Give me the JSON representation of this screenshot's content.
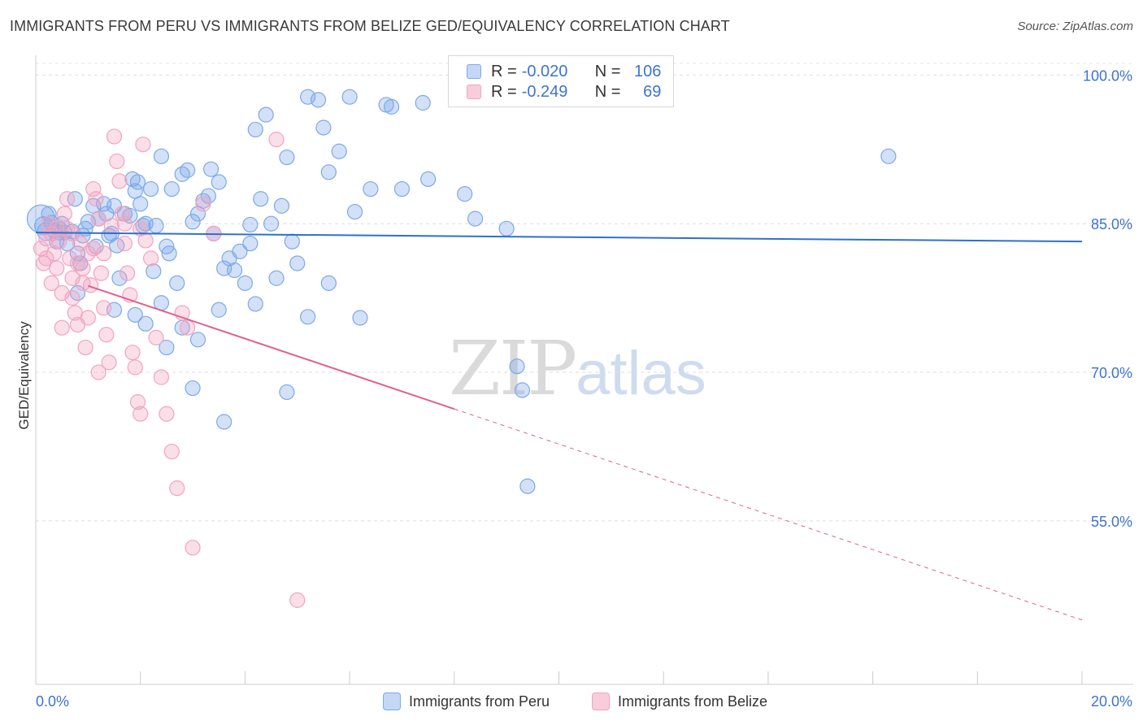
{
  "title": "IMMIGRANTS FROM PERU VS IMMIGRANTS FROM BELIZE GED/EQUIVALENCY CORRELATION CHART",
  "source": "Source: ZipAtlas.com",
  "watermark": {
    "zip": "ZIP",
    "atlas": "atlas"
  },
  "legend_top": {
    "rows": [
      {
        "r_label": "R =",
        "r_value": "-0.020",
        "n_label": "N =",
        "n_value": "106"
      },
      {
        "r_label": "R =",
        "r_value": "-0.249",
        "n_label": "N =",
        "n_value": "69"
      }
    ]
  },
  "chart_data": {
    "type": "scatter",
    "title": "IMMIGRANTS FROM PERU VS IMMIGRANTS FROM BELIZE GED/EQUIVALENCY CORRELATION CHART",
    "xlabel": "",
    "ylabel": "GED/Equivalency",
    "xlim": [
      0,
      20
    ],
    "ylim": [
      38.5,
      102
    ],
    "x_tick_labels": [
      "0.0%",
      "20.0%"
    ],
    "y_ticks": [
      55,
      70,
      85,
      100
    ],
    "y_tick_labels": [
      "55.0%",
      "70.0%",
      "85.0%",
      "100.0%"
    ],
    "grid": true,
    "series": [
      {
        "name": "Immigrants from Peru",
        "color": "#7fa8e8",
        "line_color": "#2f6fd0",
        "trend": {
          "x": [
            0,
            20
          ],
          "y": [
            84.1,
            83.2
          ],
          "dashed_from": null
        },
        "points": [
          [
            0.1,
            85.5
          ],
          [
            0.15,
            84.8
          ],
          [
            0.2,
            84.2
          ],
          [
            0.25,
            86.0
          ],
          [
            0.3,
            85.1
          ],
          [
            0.35,
            84.3
          ],
          [
            0.4,
            83.2
          ],
          [
            0.45,
            84.5
          ],
          [
            0.5,
            85.0
          ],
          [
            0.55,
            84.1
          ],
          [
            0.6,
            83.0
          ],
          [
            0.7,
            84.2
          ],
          [
            0.75,
            87.5
          ],
          [
            0.8,
            82.0
          ],
          [
            0.85,
            81.0
          ],
          [
            0.9,
            83.8
          ],
          [
            0.95,
            84.5
          ],
          [
            1.0,
            85.2
          ],
          [
            1.1,
            86.8
          ],
          [
            1.15,
            82.7
          ],
          [
            1.2,
            85.5
          ],
          [
            1.3,
            87.0
          ],
          [
            1.35,
            86.0
          ],
          [
            1.4,
            83.8
          ],
          [
            1.45,
            84.0
          ],
          [
            1.5,
            86.8
          ],
          [
            1.55,
            82.8
          ],
          [
            1.6,
            79.5
          ],
          [
            1.7,
            86.0
          ],
          [
            1.8,
            85.8
          ],
          [
            1.85,
            89.5
          ],
          [
            1.9,
            88.3
          ],
          [
            1.95,
            89.2
          ],
          [
            2.0,
            87.0
          ],
          [
            2.05,
            84.8
          ],
          [
            2.1,
            85.0
          ],
          [
            2.2,
            88.5
          ],
          [
            2.25,
            80.2
          ],
          [
            2.3,
            84.8
          ],
          [
            2.4,
            91.8
          ],
          [
            2.5,
            82.7
          ],
          [
            2.55,
            82.0
          ],
          [
            2.6,
            88.5
          ],
          [
            2.7,
            79.0
          ],
          [
            2.8,
            90.0
          ],
          [
            2.9,
            90.4
          ],
          [
            3.0,
            85.2
          ],
          [
            3.1,
            86.0
          ],
          [
            3.2,
            87.3
          ],
          [
            3.3,
            87.8
          ],
          [
            3.35,
            90.5
          ],
          [
            3.4,
            84.0
          ],
          [
            3.5,
            89.2
          ],
          [
            3.6,
            80.5
          ],
          [
            3.7,
            81.5
          ],
          [
            3.8,
            80.3
          ],
          [
            3.9,
            82.2
          ],
          [
            4.0,
            79.0
          ],
          [
            4.1,
            84.9
          ],
          [
            4.2,
            94.5
          ],
          [
            4.3,
            87.5
          ],
          [
            4.4,
            96.0
          ],
          [
            4.5,
            85.0
          ],
          [
            4.6,
            79.5
          ],
          [
            4.7,
            86.8
          ],
          [
            4.8,
            91.7
          ],
          [
            4.9,
            83.2
          ],
          [
            5.0,
            81.0
          ],
          [
            5.2,
            97.8
          ],
          [
            5.4,
            97.5
          ],
          [
            5.5,
            94.7
          ],
          [
            5.6,
            90.2
          ],
          [
            5.8,
            92.3
          ],
          [
            6.0,
            97.8
          ],
          [
            6.1,
            86.2
          ],
          [
            6.2,
            75.5
          ],
          [
            6.4,
            88.5
          ],
          [
            6.7,
            97.0
          ],
          [
            6.8,
            96.8
          ],
          [
            7.0,
            88.5
          ],
          [
            7.4,
            97.2
          ],
          [
            7.5,
            89.5
          ],
          [
            8.2,
            88.0
          ],
          [
            8.4,
            85.5
          ],
          [
            9.0,
            84.5
          ],
          [
            9.2,
            70.6
          ],
          [
            9.3,
            68.2
          ],
          [
            9.4,
            58.5
          ],
          [
            16.3,
            91.8
          ],
          [
            0.8,
            78.0
          ],
          [
            1.5,
            76.3
          ],
          [
            1.9,
            75.8
          ],
          [
            2.1,
            74.9
          ],
          [
            2.5,
            72.5
          ],
          [
            2.8,
            74.5
          ],
          [
            3.0,
            68.4
          ],
          [
            3.1,
            73.3
          ],
          [
            3.5,
            76.3
          ],
          [
            4.2,
            76.9
          ],
          [
            4.8,
            68.0
          ],
          [
            5.2,
            75.6
          ],
          [
            3.6,
            65.0
          ],
          [
            2.4,
            77.0
          ],
          [
            5.6,
            79.0
          ],
          [
            4.1,
            83.0
          ],
          [
            0.45,
            84.1
          ]
        ],
        "point_sizes": [
          34,
          22,
          22,
          18,
          18,
          18,
          18,
          18,
          18,
          18,
          18,
          18,
          18,
          18,
          18,
          18,
          18,
          18,
          18,
          18,
          18,
          18,
          18,
          18,
          18,
          18,
          18,
          18,
          18,
          18,
          18,
          18,
          18,
          18,
          18,
          18,
          18,
          18,
          18,
          18,
          18,
          18,
          18,
          18,
          18,
          18,
          18,
          18,
          18,
          18,
          18,
          18,
          18,
          18,
          18,
          18,
          18,
          18,
          18,
          18,
          18,
          18,
          18,
          18,
          18,
          18,
          18,
          18,
          18,
          18,
          18,
          18,
          18,
          18,
          18,
          18,
          18,
          18,
          18,
          18,
          18,
          18,
          18,
          18,
          18,
          18,
          18,
          18,
          18,
          18,
          18,
          18,
          18,
          18,
          18,
          18,
          18,
          18,
          18,
          18,
          18,
          18,
          18,
          18,
          18,
          18
        ]
      },
      {
        "name": "Immigrants from Belize",
        "color": "#f2a3bf",
        "line_color": "#e0608f",
        "trend": {
          "x": [
            0,
            20
          ],
          "y": [
            80.5,
            45.0
          ],
          "dashed_from": 8.0
        },
        "points": [
          [
            0.1,
            82.5
          ],
          [
            0.15,
            81.0
          ],
          [
            0.2,
            83.5
          ],
          [
            0.25,
            85.0
          ],
          [
            0.3,
            84.0
          ],
          [
            0.35,
            82.0
          ],
          [
            0.4,
            80.5
          ],
          [
            0.45,
            83.2
          ],
          [
            0.5,
            78.0
          ],
          [
            0.55,
            86.0
          ],
          [
            0.6,
            84.5
          ],
          [
            0.65,
            81.5
          ],
          [
            0.7,
            77.5
          ],
          [
            0.75,
            76.0
          ],
          [
            0.8,
            74.8
          ],
          [
            0.85,
            83.0
          ],
          [
            0.9,
            79.0
          ],
          [
            0.95,
            72.5
          ],
          [
            1.0,
            82.0
          ],
          [
            1.05,
            78.8
          ],
          [
            1.1,
            88.5
          ],
          [
            1.15,
            87.5
          ],
          [
            1.2,
            85.5
          ],
          [
            1.25,
            80.0
          ],
          [
            1.3,
            76.5
          ],
          [
            1.35,
            73.8
          ],
          [
            1.4,
            71.0
          ],
          [
            1.45,
            84.8
          ],
          [
            1.5,
            93.8
          ],
          [
            1.55,
            91.3
          ],
          [
            1.6,
            89.3
          ],
          [
            1.65,
            86.0
          ],
          [
            1.7,
            83.0
          ],
          [
            1.75,
            80.0
          ],
          [
            1.8,
            77.8
          ],
          [
            1.85,
            72.0
          ],
          [
            1.9,
            70.5
          ],
          [
            1.95,
            67.0
          ],
          [
            2.0,
            65.8
          ],
          [
            2.05,
            93.0
          ],
          [
            2.1,
            83.3
          ],
          [
            2.2,
            81.5
          ],
          [
            2.3,
            73.5
          ],
          [
            2.4,
            69.5
          ],
          [
            2.5,
            65.8
          ],
          [
            2.6,
            62.0
          ],
          [
            2.7,
            58.3
          ],
          [
            2.8,
            76.0
          ],
          [
            2.9,
            74.5
          ],
          [
            3.0,
            52.3
          ],
          [
            3.2,
            87.0
          ],
          [
            3.4,
            84.0
          ],
          [
            4.6,
            93.5
          ],
          [
            5.0,
            47.0
          ],
          [
            0.3,
            79.0
          ],
          [
            0.5,
            74.5
          ],
          [
            0.7,
            79.5
          ],
          [
            0.9,
            80.5
          ],
          [
            1.1,
            82.5
          ],
          [
            1.2,
            70.0
          ],
          [
            0.6,
            87.5
          ],
          [
            0.8,
            81.0
          ],
          [
            1.0,
            75.5
          ],
          [
            0.4,
            84.5
          ],
          [
            0.2,
            81.5
          ],
          [
            1.7,
            85.0
          ],
          [
            1.3,
            82.0
          ],
          [
            0.7,
            84.0
          ],
          [
            2.0,
            84.5
          ]
        ]
      }
    ]
  },
  "bottom_legend": [
    {
      "label": "Immigrants from Peru"
    },
    {
      "label": "Immigrants from Belize"
    }
  ]
}
